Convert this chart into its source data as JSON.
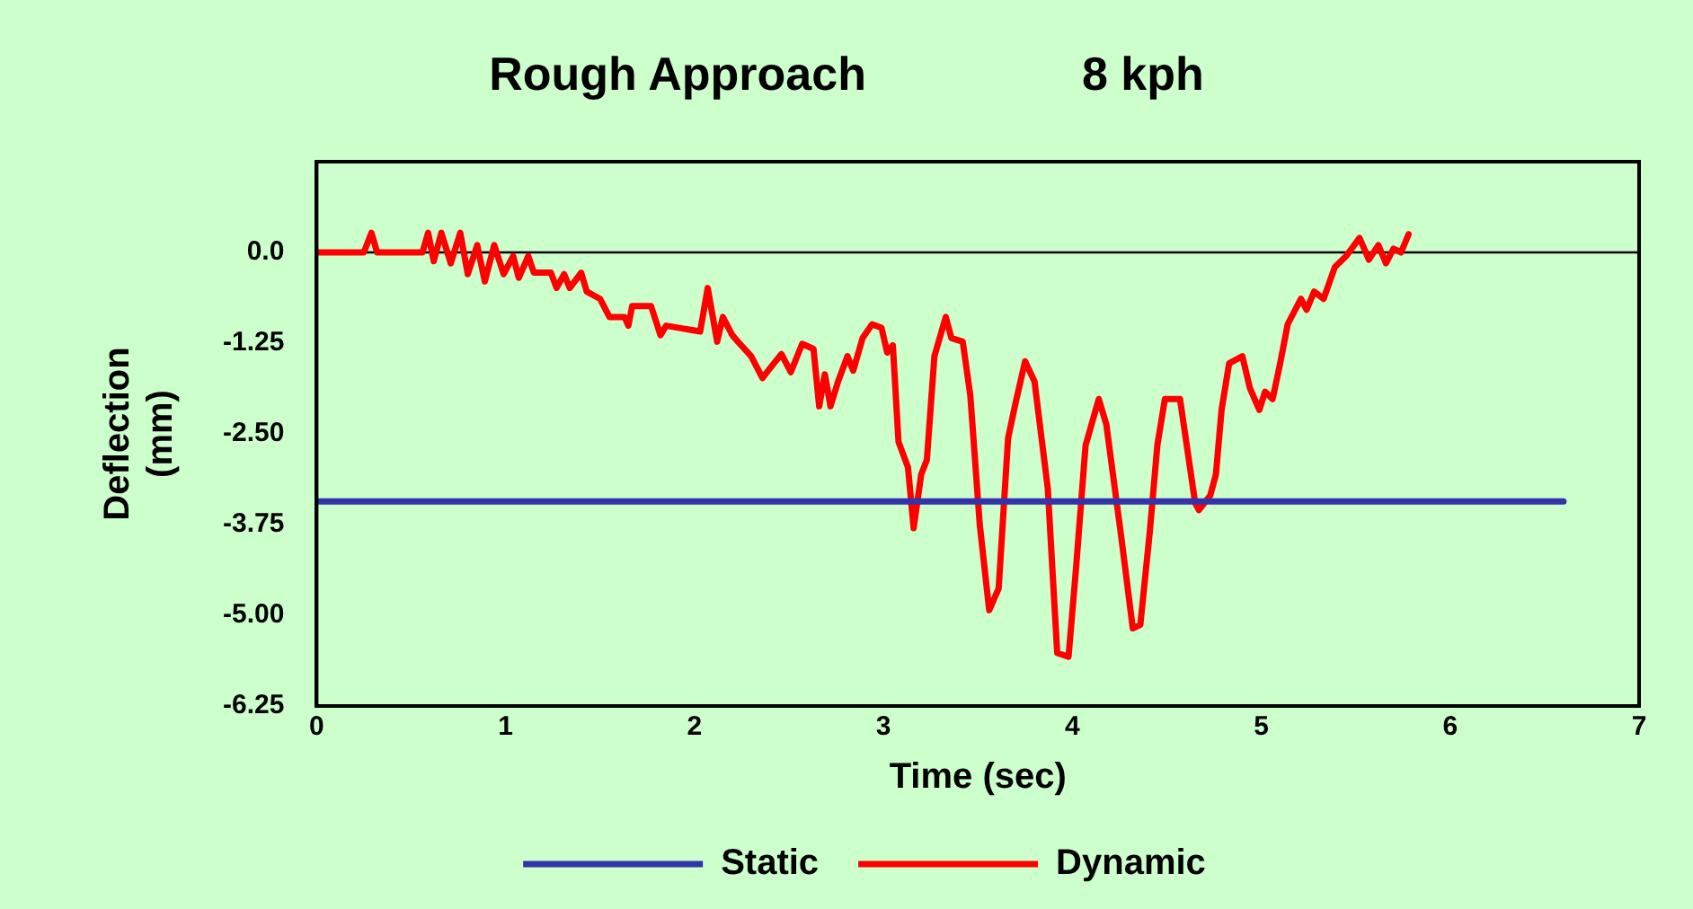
{
  "chart_data": {
    "type": "line",
    "title": "Rough Approach",
    "subtitle": "8 kph",
    "xlabel": "Time (sec)",
    "ylabel": "Deflection\n(mm)",
    "xlim": [
      0,
      7
    ],
    "xticks": [
      0,
      1,
      2,
      3,
      4,
      5,
      6,
      7
    ],
    "ylim": [
      -6.25,
      1.25
    ],
    "yticks": [
      {
        "value": 0,
        "label": "0.0"
      },
      -1.25,
      {
        "value": -2.5,
        "label": "-2.50"
      },
      -3.75,
      {
        "value": -5,
        "label": "-5.00"
      },
      -6.25
    ],
    "grid": false,
    "legend": "bottom",
    "marker": "none",
    "line_style": "solid",
    "ref_lines": [
      {
        "axis": "y",
        "value": 0,
        "label": null,
        "color": "#000000"
      }
    ],
    "series": [
      {
        "name": "Static",
        "color": "#3333aa",
        "x": [
          0,
          6.6
        ],
        "values": [
          -3.43,
          -3.43
        ]
      },
      {
        "name": "Dynamic",
        "color": "#ff0000",
        "x": [
          0,
          0.25,
          0.29,
          0.32,
          0.56,
          0.59,
          0.62,
          0.66,
          0.71,
          0.76,
          0.8,
          0.85,
          0.89,
          0.94,
          0.99,
          1.04,
          1.07,
          1.12,
          1.15,
          1.24,
          1.27,
          1.31,
          1.34,
          1.4,
          1.43,
          1.5,
          1.55,
          1.63,
          1.65,
          1.67,
          1.77,
          1.82,
          1.85,
          2.03,
          2.07,
          2.12,
          2.15,
          2.2,
          2.23,
          2.3,
          2.36,
          2.39,
          2.46,
          2.51,
          2.57,
          2.63,
          2.66,
          2.69,
          2.72,
          2.76,
          2.81,
          2.84,
          2.89,
          2.94,
          2.99,
          3.02,
          3.05,
          3.08,
          3.13,
          3.16,
          3.2,
          3.23,
          3.27,
          3.33,
          3.36,
          3.42,
          3.46,
          3.51,
          3.56,
          3.61,
          3.66,
          3.7,
          3.75,
          3.8,
          3.87,
          3.92,
          3.98,
          4.02,
          4.07,
          4.14,
          4.18,
          4.26,
          4.32,
          4.36,
          4.41,
          4.45,
          4.49,
          4.57,
          4.65,
          4.67,
          4.73,
          4.76,
          4.79,
          4.83,
          4.9,
          4.94,
          4.99,
          5.02,
          5.06,
          5.1,
          5.14,
          5.21,
          5.24,
          5.28,
          5.33,
          5.39,
          5.45,
          5.52,
          5.57,
          5.62,
          5.66,
          5.7,
          5.74,
          5.78
        ],
        "values": [
          0,
          0,
          0.27,
          0,
          0,
          0.27,
          -0.12,
          0.27,
          -0.15,
          0.27,
          -0.3,
          0.1,
          -0.4,
          0.1,
          -0.3,
          -0.05,
          -0.35,
          -0.05,
          -0.28,
          -0.28,
          -0.49,
          -0.3,
          -0.49,
          -0.28,
          -0.54,
          -0.64,
          -0.89,
          -0.89,
          -1.01,
          -0.74,
          -0.74,
          -1.14,
          -1.01,
          -1.09,
          -0.49,
          -1.23,
          -0.89,
          -1.14,
          -1.23,
          -1.43,
          -1.73,
          -1.63,
          -1.4,
          -1.65,
          -1.26,
          -1.33,
          -2.12,
          -1.68,
          -2.12,
          -1.78,
          -1.43,
          -1.63,
          -1.18,
          -0.99,
          -1.04,
          -1.38,
          -1.28,
          -2.61,
          -2.96,
          -3.8,
          -3.06,
          -2.86,
          -1.43,
          -0.89,
          -1.18,
          -1.23,
          -1.97,
          -3.75,
          -4.93,
          -4.63,
          -2.56,
          -2.07,
          -1.5,
          -1.78,
          -3.25,
          -5.52,
          -5.57,
          -4.34,
          -2.66,
          -2.02,
          -2.37,
          -3.94,
          -5.18,
          -5.13,
          -3.85,
          -2.66,
          -2.02,
          -2.02,
          -3.45,
          -3.55,
          -3.35,
          -3.06,
          -2.17,
          -1.53,
          -1.43,
          -1.87,
          -2.17,
          -1.92,
          -2.02,
          -1.53,
          -0.99,
          -0.64,
          -0.79,
          -0.54,
          -0.64,
          -0.2,
          -0.05,
          0.2,
          -0.1,
          0.1,
          -0.15,
          0.05,
          0,
          0.25
        ]
      }
    ]
  }
}
